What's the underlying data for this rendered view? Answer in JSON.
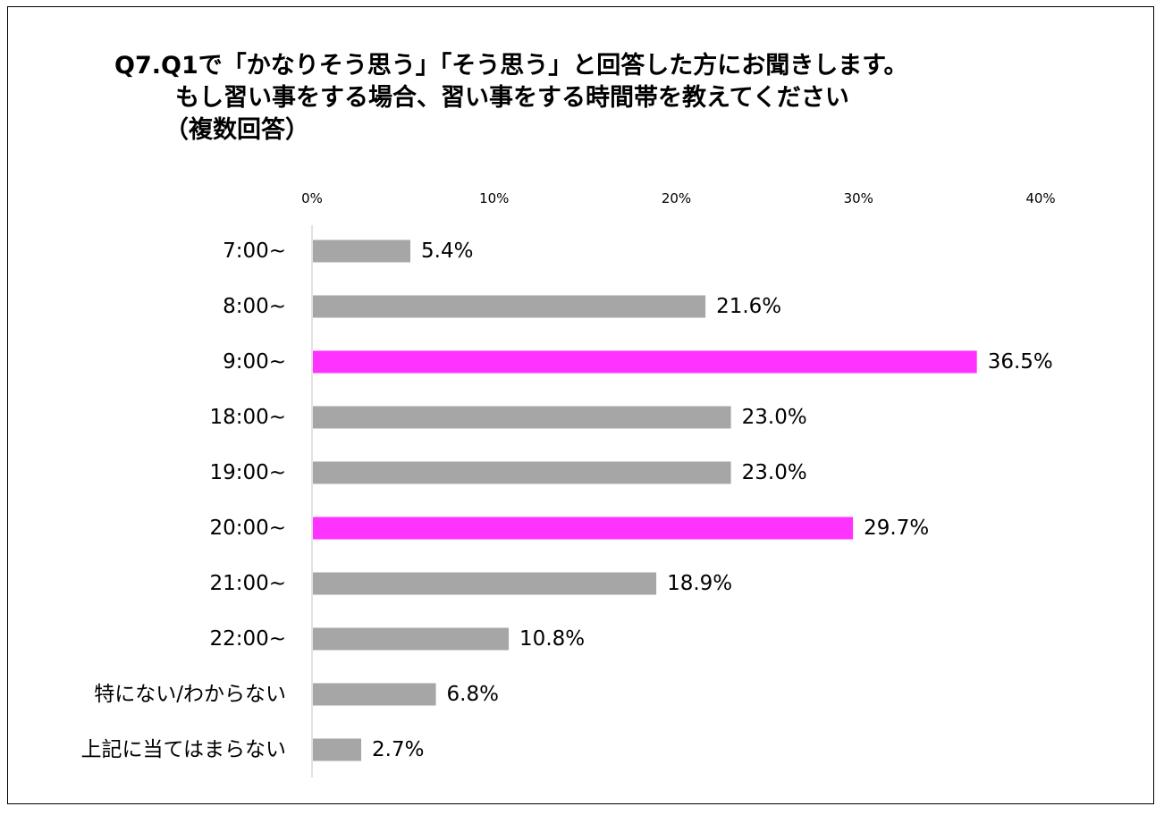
{
  "chart_data": {
    "type": "bar",
    "orientation": "horizontal",
    "title_lines": [
      "Q7.Q1で「かなりそう思う」「そう思う」と回答した方にお聞きします。",
      "もし習い事をする場合、習い事をする時間帯を教えてください",
      "（複数回答）"
    ],
    "categories": [
      "7:00~",
      "8:00~",
      "9:00~",
      "18:00~",
      "19:00~",
      "20:00~",
      "21:00~",
      "22:00~",
      "特にない/わからない",
      "上記に当てはまらない"
    ],
    "values": [
      5.4,
      21.6,
      36.5,
      23.0,
      23.0,
      29.7,
      18.9,
      10.8,
      6.8,
      2.7
    ],
    "value_labels": [
      "5.4%",
      "21.6%",
      "36.5%",
      "23.0%",
      "23.0%",
      "29.7%",
      "18.9%",
      "10.8%",
      "6.8%",
      "2.7%"
    ],
    "highlighted": [
      false,
      false,
      true,
      false,
      false,
      true,
      false,
      false,
      false,
      false
    ],
    "xlim": [
      0,
      40
    ],
    "x_ticks": [
      0,
      10,
      20,
      30,
      40
    ],
    "x_tick_labels": [
      "0%",
      "10%",
      "20%",
      "30%",
      "40%"
    ],
    "x_axis_position": "top",
    "grid": false,
    "legend": "none",
    "colors": {
      "default": "#a6a6a6",
      "highlight": "#ff33ff",
      "axis": "#d9d9d9"
    }
  }
}
